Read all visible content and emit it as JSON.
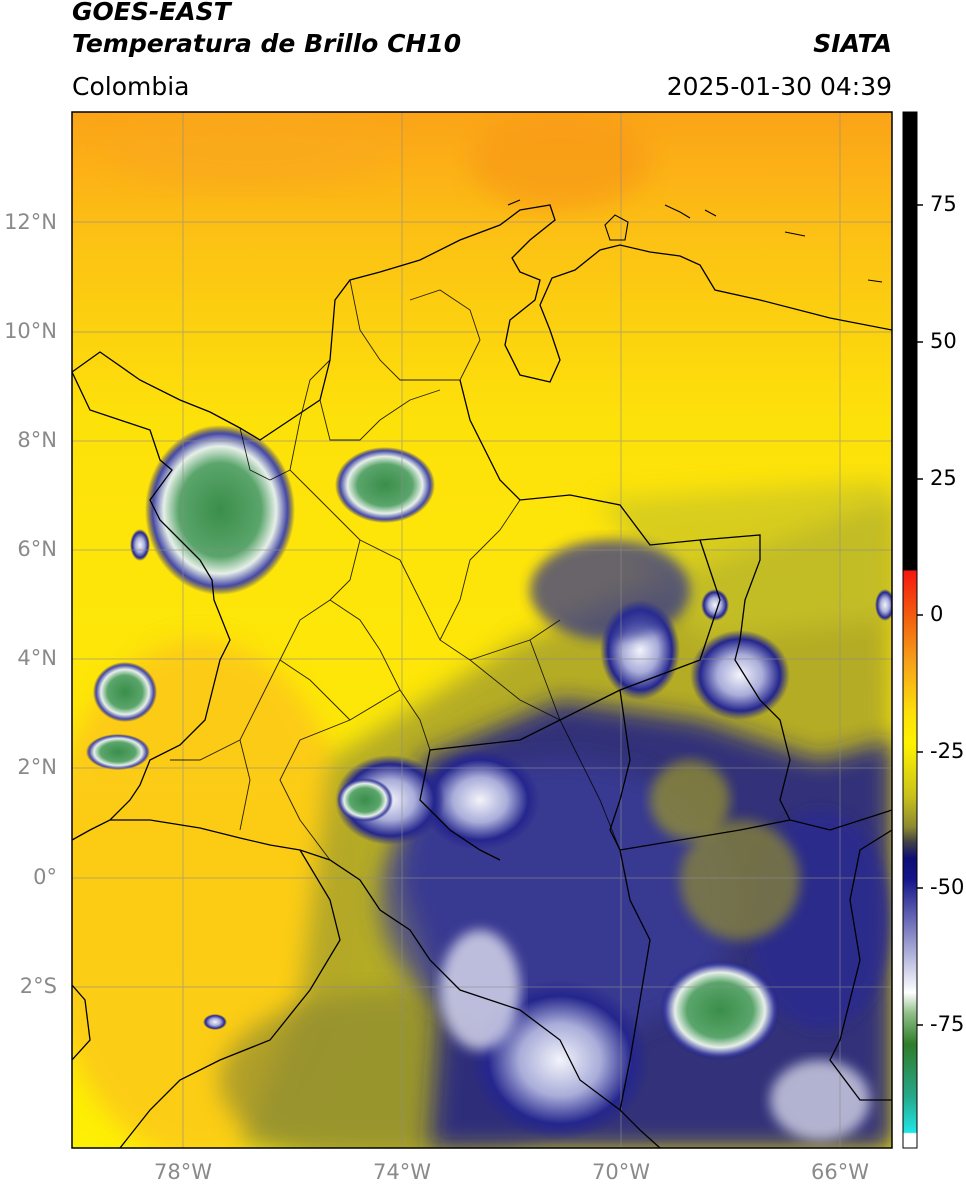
{
  "header": {
    "satellite": "GOES-EAST",
    "product": "Temperatura de Brillo CH10",
    "organization": "SIATA",
    "region": "Colombia",
    "timestamp": "2025-01-30 04:39"
  },
  "map": {
    "lat_labels": [
      "12°N",
      "10°N",
      "8°N",
      "6°N",
      "4°N",
      "2°N",
      "0°",
      "2°S"
    ],
    "lon_labels": [
      "78°W",
      "74°W",
      "70°W",
      "66°W"
    ],
    "extent": {
      "lon_min": -80.0,
      "lon_max": -65.0,
      "lat_min": -5.0,
      "lat_max": 14.0
    }
  },
  "colorbar": {
    "ticks": [
      "75",
      "50",
      "25",
      "0",
      "-25",
      "-50",
      "-75"
    ],
    "colors": {
      "black": "#000000",
      "red": "#e8231a",
      "orange": "#f6a01a",
      "yellow": "#fff200",
      "olive": "#9b9a2b",
      "navy": "#101080",
      "white": "#ffffff",
      "green": "#2f7d2a",
      "teal": "#26a88a",
      "cyan": "#1fe6e6"
    }
  }
}
